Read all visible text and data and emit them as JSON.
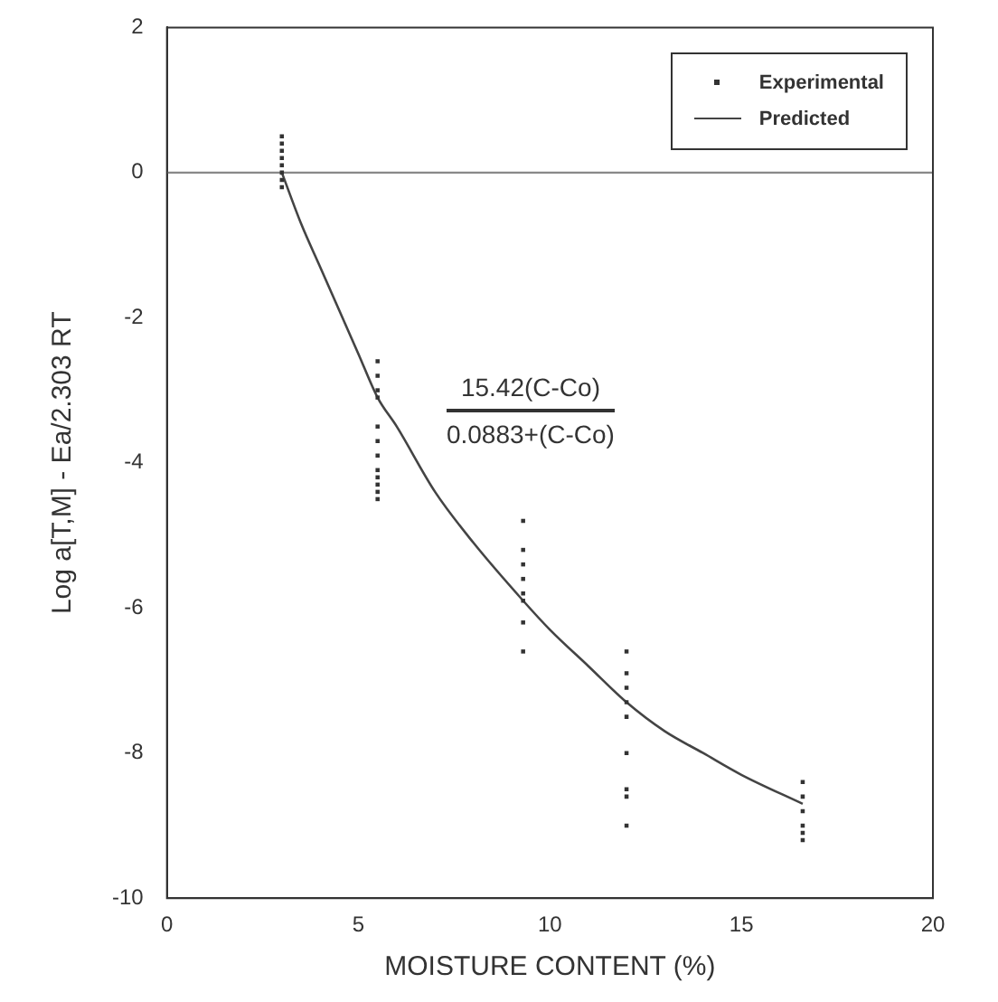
{
  "chart_data": {
    "type": "scatter",
    "xlabel": "MOISTURE CONTENT (%)",
    "ylabel": "Log a[T,M] - Ea/2.303 RT",
    "xlim": [
      0,
      20
    ],
    "xticks": [
      0,
      5,
      10,
      15,
      20
    ],
    "ylim": [
      -10,
      2
    ],
    "yticks": [
      -10,
      -8,
      -6,
      -4,
      -2,
      0,
      2
    ],
    "grid": false,
    "legend": "top right",
    "annotations": [
      "15.42(C-Co)",
      "0.0883+(C-Co)"
    ],
    "ref_lines": [
      {
        "axis": "y",
        "value": 0,
        "color": "#888888"
      }
    ],
    "series": [
      {
        "name": "Experimental",
        "marker": "square",
        "color": "#333333",
        "x": [
          3,
          3,
          3,
          3,
          3,
          3,
          3,
          3,
          5.5,
          5.5,
          5.5,
          5.5,
          5.5,
          5.5,
          5.5,
          5.5,
          5.5,
          5.5,
          5.5,
          5.5,
          9.3,
          9.3,
          9.3,
          9.3,
          9.3,
          9.3,
          9.3,
          9.3,
          12,
          12,
          12,
          12,
          12,
          12,
          12,
          12,
          12,
          16.6,
          16.6,
          16.6,
          16.6,
          16.6,
          16.6
        ],
        "values": [
          0.5,
          0.4,
          0.3,
          0.2,
          0.1,
          0,
          -0.1,
          -0.2,
          -2.6,
          -2.8,
          -3.0,
          -3.1,
          -3.5,
          -3.7,
          -3.9,
          -4.1,
          -4.2,
          -4.3,
          -4.4,
          -4.5,
          -4.8,
          -5.2,
          -5.4,
          -5.6,
          -5.8,
          -5.9,
          -6.2,
          -6.6,
          -6.6,
          -6.9,
          -7.1,
          -7.3,
          -7.5,
          -8.0,
          -8.5,
          -8.6,
          -9.0,
          -8.4,
          -8.6,
          -8.8,
          -9.0,
          -9.1,
          -9.2
        ]
      },
      {
        "name": "Predicted",
        "type": "line",
        "marker": "none",
        "line_style": "solid",
        "color": "#444444",
        "x": [
          3,
          3.5,
          4,
          5,
          5.5,
          6,
          7,
          8,
          9.3,
          10,
          11,
          12,
          13,
          14,
          15,
          16.6
        ],
        "values": [
          0,
          -0.7,
          -1.3,
          -2.5,
          -3.1,
          -3.5,
          -4.4,
          -5.1,
          -5.9,
          -6.3,
          -6.8,
          -7.3,
          -7.7,
          -8.0,
          -8.3,
          -8.7
        ]
      }
    ]
  }
}
